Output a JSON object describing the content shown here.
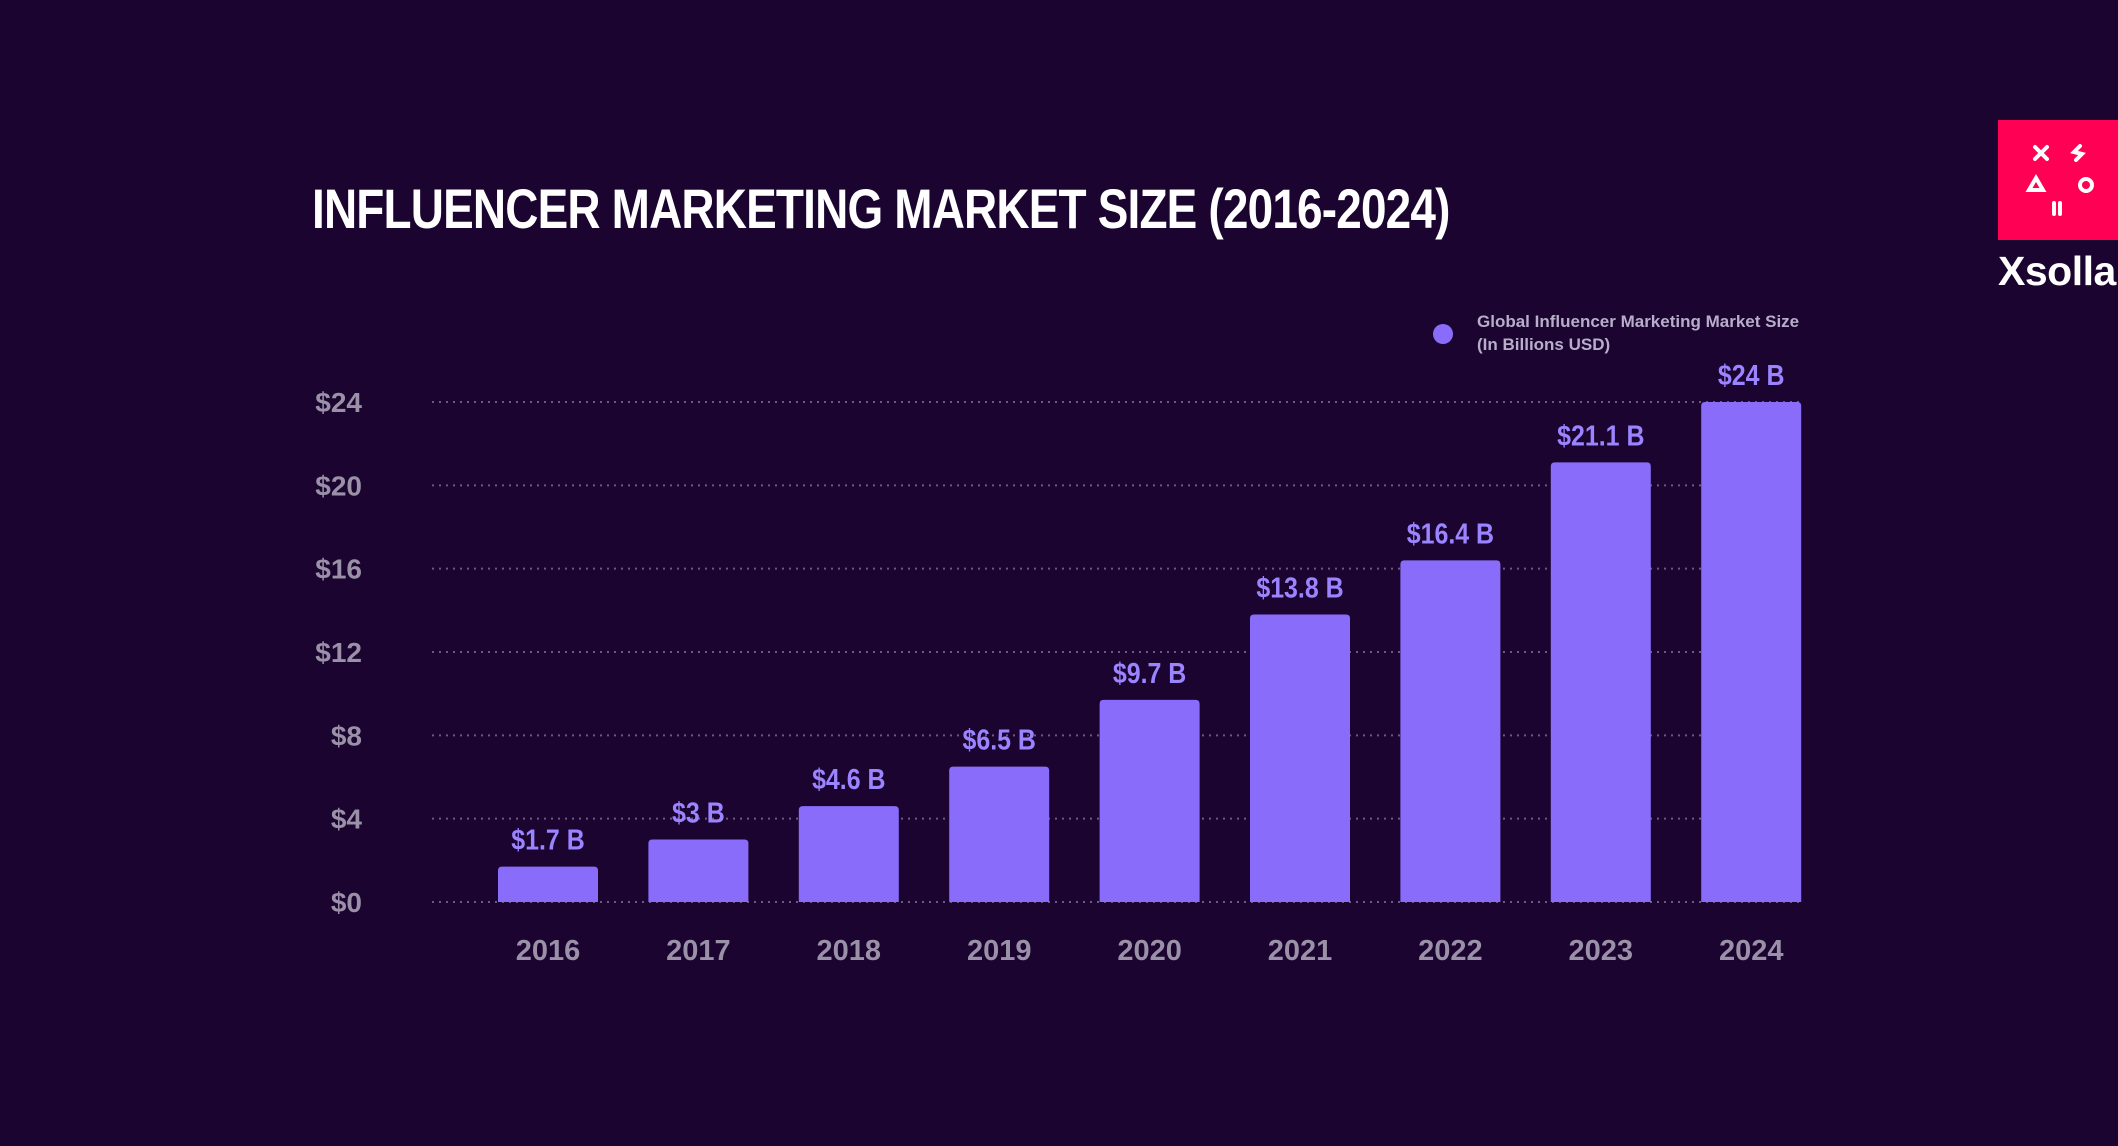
{
  "title": "INFLUENCER MARKETING MARKET SIZE (2016-2024)",
  "legend": {
    "line1": "Global Influencer Marketing Market Size",
    "line2": "(In Billions USD)"
  },
  "logo": {
    "text": "Xsolla",
    "color": "#ff0055",
    "icon": "xsolla-logo-icon"
  },
  "colors": {
    "background": "#1b0430",
    "bar": "#8a6cfb",
    "data_label": "#9b84ff",
    "axis_text": "#9a91a8",
    "grid": "#6b5a82"
  },
  "chart_data": {
    "type": "bar",
    "title": "INFLUENCER MARKETING MARKET SIZE (2016-2024)",
    "categories": [
      "2016",
      "2017",
      "2018",
      "2019",
      "2020",
      "2021",
      "2022",
      "2023",
      "2024"
    ],
    "series": [
      {
        "name": "Global Influencer Marketing Market Size (In Billions USD)",
        "values": [
          1.7,
          3,
          4.6,
          6.5,
          9.7,
          13.8,
          16.4,
          21.1,
          24
        ]
      }
    ],
    "data_labels": [
      "$1.7 B",
      "$3 B",
      "$4.6 B",
      "$6.5 B",
      "$9.7 B",
      "$13.8 B",
      "$16.4 B",
      "$21.1 B",
      "$24 B"
    ],
    "ytick_values": [
      0,
      4,
      8,
      12,
      16,
      20,
      24
    ],
    "ytick_labels": [
      "$0",
      "$4",
      "$8",
      "$12",
      "$16",
      "$20",
      "$24"
    ],
    "ylim": [
      0,
      24
    ],
    "grid": true,
    "legend_position": "top-right"
  }
}
